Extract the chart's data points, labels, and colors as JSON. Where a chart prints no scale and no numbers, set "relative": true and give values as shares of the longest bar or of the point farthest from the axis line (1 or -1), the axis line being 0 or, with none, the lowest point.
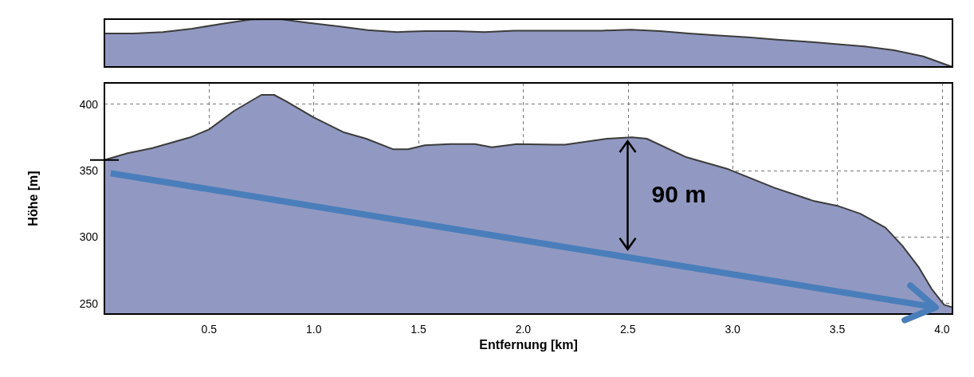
{
  "chart_data": [
    {
      "type": "area",
      "relative": true,
      "grid": false,
      "categories": [
        null,
        null,
        null,
        null,
        null,
        null,
        null,
        null,
        null,
        null,
        null,
        null,
        null,
        null,
        null,
        null,
        null,
        null,
        null,
        null,
        null,
        null,
        null,
        null,
        null,
        null,
        null,
        null,
        null,
        null
      ],
      "series": [
        {
          "color": "#9199c2",
          "values": [
            0.7,
            0.7,
            0.73,
            0.8,
            0.9,
            0.99,
            1,
            0.92,
            0.85,
            0.77,
            0.73,
            0.75,
            0.75,
            0.73,
            0.76,
            0.76,
            0.76,
            0.76,
            0.78,
            0.75,
            0.7,
            0.66,
            0.62,
            0.57,
            0.53,
            0.48,
            0.43,
            0.35,
            0.22,
            0
          ]
        }
      ]
    },
    {
      "type": "area",
      "xlabel": "Entfernung [km]",
      "ylabel": "Höhe [m]",
      "grid": true,
      "xlim": [
        0,
        4.05
      ],
      "ylim": [
        242,
        416
      ],
      "xticks": [
        0.5,
        {
          "value": 1,
          "label": "1.0"
        },
        1.5,
        {
          "value": 2,
          "label": "2.0"
        },
        2.5,
        {
          "value": 3,
          "label": "3.0"
        },
        3.5,
        {
          "value": 4,
          "label": "4.0"
        }
      ],
      "yticks": [
        250,
        300,
        350,
        400
      ],
      "x": [
        0,
        0.11,
        0.23,
        0.41,
        0.5,
        0.62,
        0.75,
        0.81,
        0.87,
        1.0,
        1.14,
        1.25,
        1.38,
        1.45,
        1.53,
        1.65,
        1.77,
        1.85,
        1.97,
        2.15,
        2.2,
        2.4,
        2.52,
        2.59,
        2.78,
        2.98,
        3.2,
        3.39,
        3.5,
        3.61,
        3.73,
        3.81,
        3.89,
        3.95,
        4.01,
        4.05
      ],
      "series": [
        {
          "type": "line",
          "color": "#4a7ebb",
          "x": [
            0.03,
            3.97
          ],
          "values": [
            348,
            247
          ]
        },
        {
          "color": "#9199c2",
          "values": [
            358,
            363,
            367,
            375,
            381,
            395,
            407,
            407,
            402,
            390,
            379,
            374,
            366,
            366,
            369,
            370,
            370,
            367.5,
            370,
            369.5,
            369.5,
            374,
            375,
            374,
            360,
            351,
            337,
            327,
            323.5,
            317.5,
            307,
            293.5,
            277,
            261,
            249,
            247
          ]
        }
      ],
      "annotations": [
        "90 m"
      ]
    }
  ]
}
